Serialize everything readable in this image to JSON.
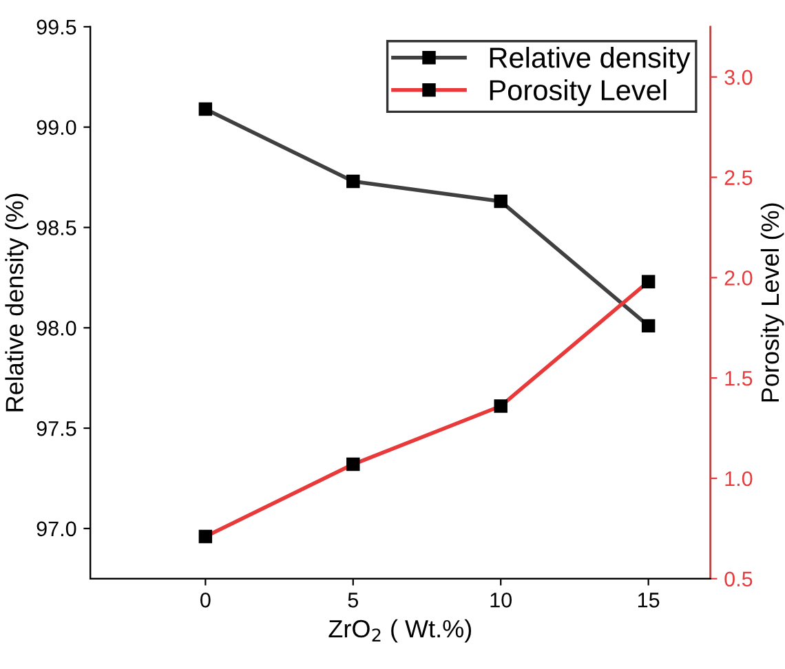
{
  "chart_data": {
    "type": "line",
    "x": [
      0,
      5,
      10,
      15
    ],
    "xlabel": "ZrO$_{2}$ ( Wt.%)",
    "ylabel": "Relative density (%)",
    "y2label": "Porosity Level (%)",
    "series": [
      {
        "name": "Relative density",
        "color": "#404040",
        "values": [
          99.09,
          98.73,
          98.63,
          98.01
        ]
      },
      {
        "name": "Porosity Level",
        "color": "#e83a3a",
        "values": [
          0.71,
          1.07,
          1.36,
          1.98
        ],
        "axis": "y2"
      }
    ],
    "xlim": [
      -3.9,
      17.1
    ],
    "xticks": [
      0,
      5,
      10,
      15
    ],
    "ylim": [
      96.75,
      99.5
    ],
    "yticks": [
      {
        "value": 97.0,
        "label": "97.0"
      },
      {
        "value": 97.5,
        "label": "97.5"
      },
      {
        "value": 98.0,
        "label": "98.0"
      },
      {
        "value": 98.5,
        "label": "98.5"
      },
      {
        "value": 99.0,
        "label": "99.0"
      },
      {
        "value": 99.5,
        "label": "99.5"
      }
    ],
    "y2lim": [
      0.5,
      3.25
    ],
    "y2ticks": [
      0.5,
      {
        "value": 1.0,
        "label": "1.0"
      },
      1.5,
      {
        "value": 2.0,
        "label": "2.0"
      },
      2.5,
      {
        "value": 3.0,
        "label": "3.0"
      }
    ],
    "marker": "square",
    "line_style": "solid",
    "legend": "top right",
    "grid": false
  }
}
